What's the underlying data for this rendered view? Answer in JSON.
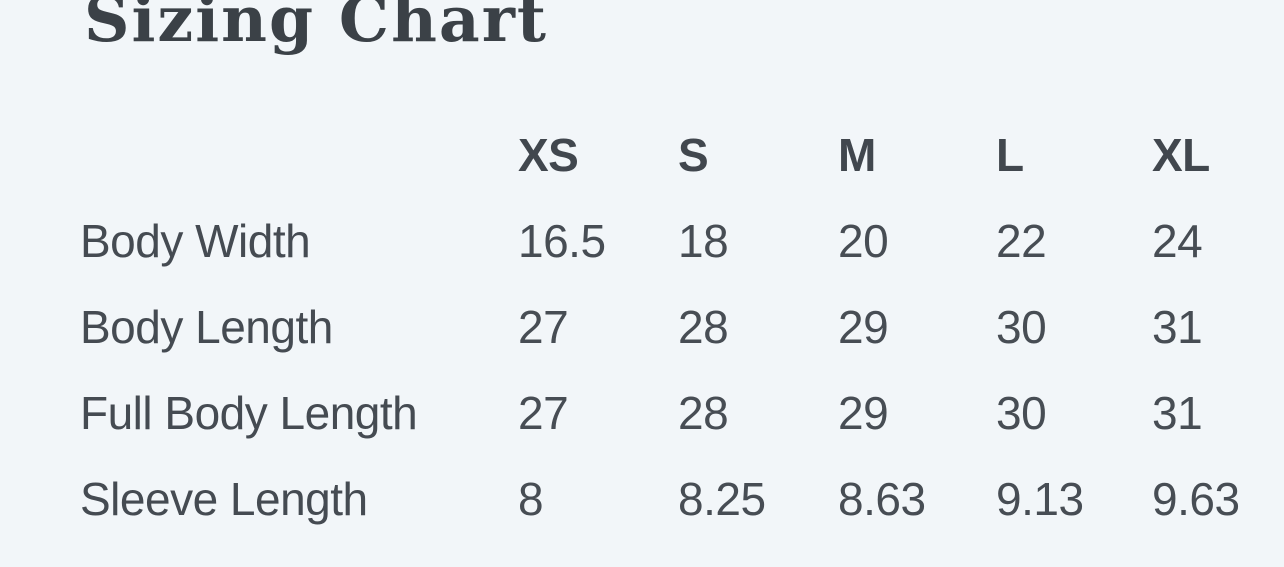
{
  "chart_data": {
    "type": "table",
    "title": "Sizing Chart",
    "columns": [
      "",
      "XS",
      "S",
      "M",
      "L",
      "XL"
    ],
    "rows": [
      {
        "label": "Body Width",
        "values": [
          "16.5",
          "18",
          "20",
          "22",
          "24"
        ]
      },
      {
        "label": "Body Length",
        "values": [
          "27",
          "28",
          "29",
          "30",
          "31"
        ]
      },
      {
        "label": "Full Body Length",
        "values": [
          "27",
          "28",
          "29",
          "30",
          "31"
        ]
      },
      {
        "label": "Sleeve Length",
        "values": [
          "8",
          "8.25",
          "8.63",
          "9.13",
          "9.63"
        ]
      }
    ],
    "layout": {
      "background_color": "#f2f6f9",
      "title_color": "#3b4147",
      "text_color": "#474d54",
      "grid": "off"
    }
  }
}
